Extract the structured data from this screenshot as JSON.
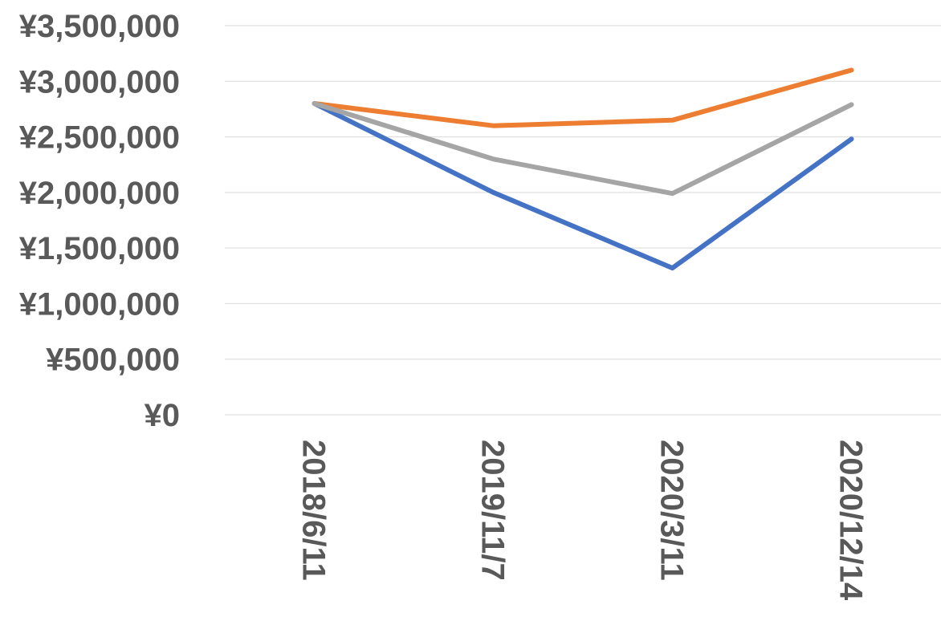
{
  "chart_data": {
    "type": "line",
    "title": "",
    "xlabel": "",
    "ylabel": "",
    "categories": [
      "2018/6/11",
      "2019/11/7",
      "2020/3/11",
      "2020/12/14"
    ],
    "ylim": [
      0,
      3500000
    ],
    "ytick_values": [
      0,
      500000,
      1000000,
      1500000,
      2000000,
      2500000,
      3000000,
      3500000
    ],
    "ytick_labels": [
      "¥0",
      "¥500,000",
      "¥1,000,000",
      "¥1,500,000",
      "¥2,000,000",
      "¥2,500,000",
      "¥3,000,000",
      "¥3,500,000"
    ],
    "grid": true,
    "legend": "none",
    "series": [
      {
        "color": "#4472C4",
        "values": [
          2800000,
          2000000,
          1320000,
          2480000
        ]
      },
      {
        "color": "#ED7D31",
        "values": [
          2800000,
          2600000,
          2650000,
          3100000
        ]
      },
      {
        "color": "#A5A5A5",
        "values": [
          2800000,
          2300000,
          1990000,
          2790000
        ]
      }
    ]
  }
}
